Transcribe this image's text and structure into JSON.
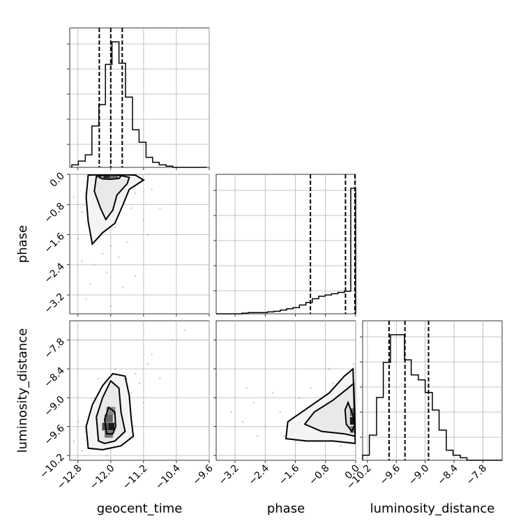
{
  "chart_data": {
    "type": "corner",
    "parameters": [
      "geocent_time",
      "phase",
      "luminosity_distance"
    ],
    "axis_labels": {
      "geocent_time": "geocent_time",
      "phase": "phase",
      "luminosity_distance": "luminosity_distance"
    },
    "ranges": {
      "geocent_time": [
        -13.0,
        -9.6
      ],
      "phase": [
        -3.7,
        0.0
      ],
      "luminosity_distance": [
        -10.3,
        -7.4
      ]
    },
    "ticks": {
      "geocent_time": [
        "-12.8",
        "-12.0",
        "-11.2",
        "-10.4",
        "-9.6"
      ],
      "phase": [
        "-3.2",
        "-2.4",
        "-1.6",
        "-0.8",
        "0.0"
      ],
      "luminosity_distance": [
        "-10.2",
        "-9.6",
        "-9.0",
        "-8.4",
        "-7.8"
      ]
    },
    "quantiles": {
      "geocent_time": [
        -12.28,
        -12.0,
        -11.72
      ],
      "phase": [
        -1.2,
        -0.27,
        -0.02
      ],
      "luminosity_distance": [
        -9.75,
        -9.42,
        -8.93
      ]
    },
    "histograms": {
      "geocent_time": {
        "edges": [
          -12.95,
          -12.79,
          -12.62,
          -12.46,
          -12.29,
          -12.13,
          -11.97,
          -11.8,
          -11.64,
          -11.47,
          -11.31,
          -11.14,
          -10.98,
          -10.82,
          -10.65,
          -10.49,
          -10.32,
          -10.16,
          -9.99,
          -9.83,
          -9.66
        ],
        "counts": [
          2,
          5,
          10,
          33,
          50,
          82,
          100,
          83,
          56,
          30,
          20,
          8,
          4,
          2,
          1,
          0,
          0,
          0,
          0,
          0
        ]
      },
      "phase": {
        "edges": [
          -3.7,
          -3.53,
          -3.36,
          -3.19,
          -3.02,
          -2.85,
          -2.68,
          -2.51,
          -2.34,
          -2.17,
          -2.0,
          -1.83,
          -1.66,
          -1.49,
          -1.32,
          -1.15,
          -0.98,
          -0.81,
          -0.64,
          -0.47,
          -0.3,
          -0.13,
          0.0
        ],
        "counts": [
          0,
          0,
          0,
          0,
          0.5,
          1,
          1,
          1,
          1.5,
          2,
          3,
          4,
          5,
          7,
          9,
          12,
          14,
          15,
          16,
          17,
          18,
          100
        ]
      },
      "luminosity_distance": {
        "edges": [
          -10.3,
          -10.16,
          -10.01,
          -9.87,
          -9.72,
          -9.58,
          -9.43,
          -9.29,
          -9.14,
          -9.0,
          -8.85,
          -8.71,
          -8.56,
          -8.42,
          -8.27,
          -8.13,
          -7.98,
          -7.84,
          -7.69,
          -7.55,
          -7.4
        ],
        "counts": [
          2,
          10,
          25,
          39,
          50,
          50,
          40,
          34,
          32,
          27,
          20,
          12,
          4,
          2,
          1,
          0,
          0,
          0,
          0,
          0
        ]
      }
    },
    "pairs": [
      {
        "x": "geocent_time",
        "y": "phase",
        "points": [
          [
            -12.2,
            -0.2
          ],
          [
            -12.4,
            -0.6
          ],
          [
            -12.1,
            -1.1
          ],
          [
            -11.9,
            -0.4
          ],
          [
            -12.3,
            -1.6
          ],
          [
            -12.0,
            -0.9
          ],
          [
            -11.8,
            -0.2
          ],
          [
            -12.5,
            -1.3
          ],
          [
            -12.2,
            -2.1
          ],
          [
            -11.7,
            -0.7
          ],
          [
            -12.6,
            -0.5
          ],
          [
            -12.0,
            -1.9
          ],
          [
            -11.6,
            -0.3
          ],
          [
            -12.4,
            -2.4
          ],
          [
            -11.9,
            -1.4
          ],
          [
            -12.7,
            -1.0
          ],
          [
            -11.5,
            -0.9
          ],
          [
            -12.1,
            -2.6
          ],
          [
            -12.3,
            -0.1
          ],
          [
            -11.4,
            -0.5
          ],
          [
            -12.8,
            -1.7
          ],
          [
            -11.2,
            -1.2
          ],
          [
            -12.5,
            -2.9
          ],
          [
            -11.8,
            -2.2
          ],
          [
            -12.0,
            -0.05
          ],
          [
            -11.3,
            -0.2
          ],
          [
            -12.9,
            -0.6
          ],
          [
            -11.1,
            -1.6
          ],
          [
            -11.7,
            -3.0
          ],
          [
            -12.6,
            -3.3
          ],
          [
            -12.2,
            -0.4
          ],
          [
            -11.9,
            -0.1
          ],
          [
            -12.1,
            -0.3
          ],
          [
            -12.0,
            -0.6
          ],
          [
            -11.8,
            -1.0
          ],
          [
            -12.3,
            -0.8
          ],
          [
            -12.4,
            -1.0
          ],
          [
            -11.6,
            -1.8
          ],
          [
            -12.2,
            -1.4
          ],
          [
            -11.0,
            -0.4
          ],
          [
            -10.8,
            -0.9
          ],
          [
            -12.7,
            -2.3
          ],
          [
            -11.4,
            -2.7
          ],
          [
            -12.0,
            -3.5
          ],
          [
            -12.5,
            -0.2
          ],
          [
            -11.5,
            -0.1
          ]
        ],
        "contours": [
          [
            [
              -12.25,
              -0.02
            ],
            [
              -12.28,
              -0.08
            ],
            [
              -12.2,
              -0.12
            ],
            [
              -12.0,
              -0.13
            ],
            [
              -11.8,
              -0.11
            ],
            [
              -11.75,
              -0.05
            ],
            [
              -11.85,
              0.0
            ],
            [
              -12.05,
              0.0
            ]
          ],
          [
            [
              -12.35,
              -0.05
            ],
            [
              -12.4,
              -0.45
            ],
            [
              -12.25,
              -0.9
            ],
            [
              -12.12,
              -1.2
            ],
            [
              -11.95,
              -0.95
            ],
            [
              -11.85,
              -0.55
            ],
            [
              -11.6,
              -0.25
            ],
            [
              -11.55,
              -0.08
            ],
            [
              -11.8,
              -0.02
            ],
            [
              -12.1,
              -0.01
            ]
          ],
          [
            [
              -12.55,
              -0.02
            ],
            [
              -12.6,
              -0.6
            ],
            [
              -12.55,
              -1.25
            ],
            [
              -12.45,
              -1.85
            ],
            [
              -12.2,
              -1.55
            ],
            [
              -11.9,
              -1.3
            ],
            [
              -11.7,
              -0.8
            ],
            [
              -11.55,
              -0.4
            ],
            [
              -11.2,
              -0.15
            ],
            [
              -11.4,
              -0.02
            ],
            [
              -12.0,
              0.0
            ]
          ]
        ],
        "density_cells": [
          {
            "x": -12.08,
            "y": -0.05,
            "w": 0.2,
            "h": 0.1,
            "level": 0.85
          },
          {
            "x": -11.92,
            "y": -0.05,
            "w": 0.2,
            "h": 0.1,
            "level": 0.6
          },
          {
            "x": -12.25,
            "y": -0.05,
            "w": 0.15,
            "h": 0.1,
            "level": 0.35
          }
        ]
      },
      {
        "x": "geocent_time",
        "y": "luminosity_distance",
        "points": [
          [
            -12.0,
            -9.6
          ],
          [
            -11.9,
            -9.2
          ],
          [
            -12.1,
            -9.8
          ],
          [
            -11.8,
            -9.0
          ],
          [
            -12.2,
            -9.5
          ],
          [
            -11.7,
            -8.8
          ],
          [
            -12.3,
            -9.9
          ],
          [
            -11.6,
            -8.6
          ],
          [
            -12.4,
            -9.3
          ],
          [
            -11.5,
            -9.4
          ],
          [
            -12.5,
            -10.0
          ],
          [
            -11.4,
            -8.5
          ],
          [
            -12.6,
            -9.7
          ],
          [
            -11.3,
            -8.7
          ],
          [
            -12.7,
            -10.1
          ],
          [
            -11.2,
            -9.1
          ],
          [
            -12.2,
            -8.9
          ],
          [
            -11.1,
            -8.3
          ],
          [
            -12.8,
            -9.5
          ],
          [
            -11.0,
            -8.1
          ],
          [
            -12.0,
            -8.7
          ],
          [
            -11.9,
            -8.4
          ],
          [
            -12.1,
            -10.2
          ],
          [
            -11.5,
            -8.9
          ],
          [
            -12.4,
            -9.0
          ],
          [
            -10.8,
            -8.6
          ],
          [
            -10.5,
            -7.8
          ],
          [
            -10.2,
            -7.6
          ],
          [
            -12.9,
            -9.9
          ],
          [
            -11.7,
            -9.9
          ],
          [
            -12.3,
            -8.6
          ],
          [
            -11.6,
            -9.6
          ],
          [
            -12.0,
            -9.3
          ],
          [
            -11.8,
            -9.5
          ],
          [
            -12.2,
            -9.1
          ]
        ],
        "contours": [
          [
            [
              -12.1,
              -9.75
            ],
            [
              -12.15,
              -9.45
            ],
            [
              -12.05,
              -9.2
            ],
            [
              -11.9,
              -9.3
            ],
            [
              -11.88,
              -9.6
            ],
            [
              -11.95,
              -9.75
            ]
          ],
          [
            [
              -12.3,
              -9.9
            ],
            [
              -12.35,
              -9.4
            ],
            [
              -12.2,
              -9.0
            ],
            [
              -12.0,
              -8.65
            ],
            [
              -11.8,
              -8.8
            ],
            [
              -11.75,
              -9.3
            ],
            [
              -11.65,
              -9.7
            ],
            [
              -11.9,
              -9.9
            ],
            [
              -12.15,
              -9.95
            ]
          ],
          [
            [
              -12.55,
              -10.05
            ],
            [
              -12.6,
              -9.6
            ],
            [
              -12.45,
              -9.15
            ],
            [
              -12.2,
              -8.75
            ],
            [
              -11.95,
              -8.5
            ],
            [
              -11.65,
              -8.55
            ],
            [
              -11.55,
              -8.95
            ],
            [
              -11.5,
              -9.45
            ],
            [
              -11.45,
              -9.8
            ],
            [
              -11.75,
              -10.0
            ],
            [
              -12.2,
              -10.08
            ]
          ]
        ],
        "density_cells": [
          {
            "x": -12.0,
            "y": -9.6,
            "w": 0.18,
            "h": 0.16,
            "level": 0.9
          },
          {
            "x": -12.13,
            "y": -9.6,
            "w": 0.16,
            "h": 0.16,
            "level": 0.7
          },
          {
            "x": -12.05,
            "y": -9.43,
            "w": 0.2,
            "h": 0.16,
            "level": 0.6
          },
          {
            "x": -12.05,
            "y": -9.76,
            "w": 0.2,
            "h": 0.14,
            "level": 0.55
          },
          {
            "x": -12.0,
            "y": -9.27,
            "w": 0.22,
            "h": 0.16,
            "level": 0.45
          }
        ]
      },
      {
        "x": "phase",
        "y": "luminosity_distance",
        "points": [
          [
            -0.2,
            -9.4
          ],
          [
            -0.5,
            -9.6
          ],
          [
            -0.9,
            -9.2
          ],
          [
            -1.3,
            -9.7
          ],
          [
            -1.7,
            -9.5
          ],
          [
            -2.0,
            -9.3
          ],
          [
            -2.4,
            -9.6
          ],
          [
            -2.7,
            -9.1
          ],
          [
            -3.0,
            -9.5
          ],
          [
            -0.3,
            -8.9
          ],
          [
            -0.6,
            -8.7
          ],
          [
            -1.0,
            -9.9
          ],
          [
            -1.5,
            -9.0
          ],
          [
            -1.9,
            -9.8
          ],
          [
            -2.2,
            -8.9
          ],
          [
            -0.1,
            -8.5
          ],
          [
            -0.4,
            -10.0
          ],
          [
            -0.8,
            -9.5
          ],
          [
            -1.2,
            -8.8
          ],
          [
            -1.6,
            -9.9
          ],
          [
            -2.6,
            -9.8
          ],
          [
            -3.3,
            -9.3
          ],
          [
            -0.05,
            -8.3
          ],
          [
            -0.7,
            -8.4
          ],
          [
            -1.1,
            -9.4
          ],
          [
            -2.9,
            -8.8
          ],
          [
            -0.25,
            -9.0
          ],
          [
            -0.15,
            -9.8
          ]
        ],
        "contours": [
          [
            [
              -0.02,
              -9.55
            ],
            [
              -0.08,
              -9.35
            ],
            [
              -0.2,
              -9.1
            ],
            [
              -0.28,
              -9.25
            ],
            [
              -0.25,
              -9.55
            ],
            [
              -0.1,
              -9.7
            ]
          ],
          [
            [
              -0.01,
              -9.8
            ],
            [
              -0.3,
              -9.75
            ],
            [
              -0.9,
              -9.7
            ],
            [
              -1.35,
              -9.55
            ],
            [
              -1.1,
              -9.3
            ],
            [
              -0.6,
              -9.05
            ],
            [
              -0.2,
              -8.8
            ],
            [
              -0.05,
              -8.7
            ]
          ],
          [
            [
              -0.01,
              -9.95
            ],
            [
              -0.6,
              -9.9
            ],
            [
              -1.3,
              -9.9
            ],
            [
              -1.85,
              -9.85
            ],
            [
              -1.8,
              -9.5
            ],
            [
              -1.25,
              -9.2
            ],
            [
              -0.7,
              -8.9
            ],
            [
              -0.3,
              -8.55
            ],
            [
              -0.07,
              -8.4
            ]
          ]
        ],
        "density_cells": [
          {
            "x": -0.08,
            "y": -9.48,
            "w": 0.14,
            "h": 0.16,
            "level": 0.9
          },
          {
            "x": -0.08,
            "y": -9.3,
            "w": 0.14,
            "h": 0.16,
            "level": 0.6
          },
          {
            "x": -0.08,
            "y": -9.66,
            "w": 0.14,
            "h": 0.14,
            "level": 0.5
          }
        ]
      }
    ]
  }
}
